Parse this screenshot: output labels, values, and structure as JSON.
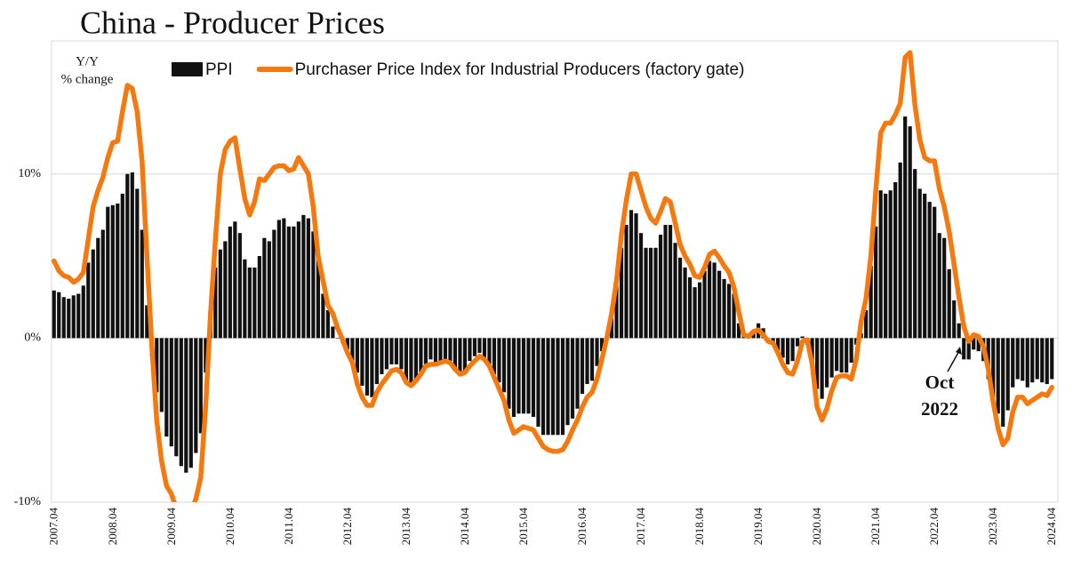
{
  "chart_data": {
    "type": "bar",
    "title": "China - Producer Prices",
    "ylabel": [
      "Y/Y",
      "% change"
    ],
    "annotation": [
      "Oct",
      "2022"
    ],
    "ylim": [
      -10,
      18
    ],
    "yticks": [
      {
        "value": -10,
        "label": "-10%"
      },
      {
        "value": 0,
        "label": "0%"
      },
      {
        "value": 10,
        "label": "10%"
      }
    ],
    "grid": true,
    "categories": [
      "2007.04",
      null,
      null,
      null,
      null,
      null,
      null,
      null,
      null,
      null,
      null,
      null,
      "2008.04",
      null,
      null,
      null,
      null,
      null,
      null,
      null,
      null,
      null,
      null,
      null,
      "2009.04",
      null,
      null,
      null,
      null,
      null,
      null,
      null,
      null,
      null,
      null,
      null,
      "2010.04",
      null,
      null,
      null,
      null,
      null,
      null,
      null,
      null,
      null,
      null,
      null,
      "2011.04",
      null,
      null,
      null,
      null,
      null,
      null,
      null,
      null,
      null,
      null,
      null,
      "2012.04",
      null,
      null,
      null,
      null,
      null,
      null,
      null,
      null,
      null,
      null,
      null,
      "2013.04",
      null,
      null,
      null,
      null,
      null,
      null,
      null,
      null,
      null,
      null,
      null,
      "2014.04",
      null,
      null,
      null,
      null,
      null,
      null,
      null,
      null,
      null,
      null,
      null,
      "2015.04",
      null,
      null,
      null,
      null,
      null,
      null,
      null,
      null,
      null,
      null,
      null,
      "2016.04",
      null,
      null,
      null,
      null,
      null,
      null,
      null,
      null,
      null,
      null,
      null,
      "2017.04",
      null,
      null,
      null,
      null,
      null,
      null,
      null,
      null,
      null,
      null,
      null,
      "2018.04",
      null,
      null,
      null,
      null,
      null,
      null,
      null,
      null,
      null,
      null,
      null,
      "2019.04",
      null,
      null,
      null,
      null,
      null,
      null,
      null,
      null,
      null,
      null,
      null,
      "2020.04",
      null,
      null,
      null,
      null,
      null,
      null,
      null,
      null,
      null,
      null,
      null,
      "2021.04",
      null,
      null,
      null,
      null,
      null,
      null,
      null,
      null,
      null,
      null,
      null,
      "2022.04",
      null,
      null,
      null,
      null,
      null,
      null,
      null,
      null,
      null,
      null,
      null,
      "2023.04",
      null,
      null,
      null,
      null,
      null,
      null,
      null,
      null,
      null,
      null,
      null,
      "2024.04"
    ],
    "series": [
      {
        "name": "PPI",
        "type": "bar",
        "color": "#111111",
        "values": [
          2.9,
          2.8,
          2.5,
          2.4,
          2.6,
          2.7,
          3.2,
          4.6,
          5.4,
          6.1,
          6.6,
          8.0,
          8.1,
          8.2,
          8.8,
          10.0,
          10.1,
          9.1,
          6.6,
          2.0,
          -1.1,
          -3.3,
          -4.5,
          -6.0,
          -6.6,
          -7.2,
          -7.8,
          -8.2,
          -7.9,
          -7.0,
          -5.8,
          -2.1,
          1.7,
          4.3,
          5.4,
          5.9,
          6.8,
          7.1,
          6.4,
          4.8,
          4.3,
          4.3,
          5.0,
          6.1,
          5.9,
          6.6,
          7.2,
          7.3,
          6.8,
          6.8,
          7.1,
          7.5,
          7.3,
          6.5,
          5.0,
          2.7,
          1.7,
          0.7,
          0.0,
          -0.3,
          -0.7,
          -1.4,
          -2.1,
          -2.9,
          -3.5,
          -3.6,
          -2.8,
          -2.2,
          -1.9,
          -1.6,
          -1.6,
          -1.9,
          -2.6,
          -2.9,
          -2.7,
          -2.3,
          -1.6,
          -1.3,
          -1.5,
          -1.4,
          -1.4,
          -1.6,
          -2.0,
          -2.3,
          -2.0,
          -1.4,
          -1.1,
          -0.9,
          -1.2,
          -1.8,
          -2.2,
          -2.7,
          -3.3,
          -4.3,
          -4.8,
          -4.6,
          -4.6,
          -4.6,
          -4.8,
          -5.4,
          -5.9,
          -5.9,
          -5.9,
          -5.9,
          -5.9,
          -5.3,
          -4.9,
          -4.3,
          -3.4,
          -2.8,
          -2.6,
          -1.7,
          -0.8,
          0.1,
          1.2,
          3.3,
          5.5,
          6.9,
          7.8,
          7.6,
          6.4,
          5.5,
          5.5,
          5.5,
          6.3,
          6.9,
          6.9,
          5.8,
          4.9,
          4.3,
          3.7,
          3.1,
          3.4,
          4.1,
          4.7,
          4.6,
          4.1,
          3.6,
          3.3,
          2.7,
          0.9,
          0.1,
          0.1,
          0.4,
          0.9,
          0.6,
          0.0,
          -0.3,
          -0.8,
          -1.2,
          -1.6,
          -1.4,
          -0.5,
          0.1,
          -0.4,
          -1.5,
          -3.1,
          -3.7,
          -3.0,
          -2.4,
          -2.0,
          -2.1,
          -2.1,
          -1.5,
          -0.4,
          0.3,
          1.7,
          4.4,
          6.8,
          9.0,
          8.8,
          9.0,
          9.5,
          10.7,
          13.5,
          12.9,
          10.3,
          9.1,
          8.8,
          8.3,
          8.0,
          6.4,
          6.1,
          4.2,
          2.3,
          0.9,
          -1.3,
          -1.3,
          -0.7,
          -0.8,
          -1.4,
          -2.5,
          -3.6,
          -4.6,
          -5.4,
          -4.4,
          -3.0,
          -2.5,
          -2.6,
          -3.0,
          -2.7,
          -2.5,
          -2.7,
          -2.8,
          -2.5
        ]
      },
      {
        "name": "Purchaser Price Index for Industrial Producers (factory gate)",
        "type": "line",
        "color": "#f47a10",
        "values": [
          4.7,
          4.1,
          3.8,
          3.7,
          3.4,
          3.6,
          4.0,
          6.0,
          8.0,
          9.0,
          9.8,
          11.0,
          11.9,
          12.0,
          13.8,
          15.4,
          15.2,
          13.8,
          10.8,
          5.0,
          -0.5,
          -5.0,
          -7.5,
          -9.0,
          -9.5,
          -10.4,
          -11.0,
          -11.0,
          -10.6,
          -9.8,
          -8.5,
          -4.2,
          1.5,
          6.0,
          10.0,
          11.5,
          12.0,
          12.2,
          10.3,
          8.5,
          7.5,
          8.3,
          9.7,
          9.6,
          10.0,
          10.4,
          10.5,
          10.5,
          10.2,
          10.3,
          11.0,
          10.5,
          10.0,
          8.0,
          5.0,
          3.5,
          2.0,
          1.5,
          0.6,
          -0.1,
          -0.9,
          -1.5,
          -2.8,
          -3.6,
          -4.1,
          -4.1,
          -3.3,
          -2.8,
          -2.4,
          -2.0,
          -1.9,
          -2.1,
          -2.7,
          -2.9,
          -2.6,
          -2.2,
          -1.7,
          -1.6,
          -1.6,
          -1.5,
          -1.4,
          -1.5,
          -1.9,
          -2.2,
          -2.1,
          -1.7,
          -1.4,
          -1.1,
          -1.3,
          -1.7,
          -2.4,
          -3.1,
          -3.8,
          -5.0,
          -5.8,
          -5.6,
          -5.4,
          -5.5,
          -5.6,
          -6.1,
          -6.6,
          -6.8,
          -6.9,
          -6.9,
          -6.8,
          -6.3,
          -5.6,
          -5.0,
          -4.2,
          -3.6,
          -3.3,
          -2.5,
          -1.3,
          0.0,
          1.5,
          3.5,
          6.3,
          8.4,
          10.0,
          10.0,
          9.0,
          8.0,
          7.3,
          7.0,
          7.7,
          8.5,
          8.3,
          7.0,
          5.7,
          5.0,
          4.5,
          3.8,
          3.7,
          4.3,
          5.1,
          5.3,
          4.9,
          4.4,
          4.0,
          3.1,
          1.6,
          0.2,
          0.1,
          0.4,
          0.5,
          0.2,
          -0.2,
          -0.3,
          -0.9,
          -1.6,
          -2.1,
          -2.2,
          -1.4,
          -0.2,
          -0.1,
          -1.6,
          -4.2,
          -5.0,
          -4.3,
          -3.2,
          -2.4,
          -2.3,
          -2.3,
          -2.5,
          -1.3,
          1.0,
          2.4,
          5.0,
          9.0,
          12.5,
          13.1,
          13.1,
          13.6,
          14.3,
          17.1,
          17.4,
          14.2,
          12.1,
          11.0,
          10.8,
          10.8,
          9.1,
          8.0,
          6.5,
          4.5,
          2.5,
          0.7,
          -0.2,
          0.2,
          0.1,
          -0.5,
          -1.9,
          -3.9,
          -5.5,
          -6.5,
          -6.1,
          -4.5,
          -3.6,
          -3.6,
          -4.0,
          -3.8,
          -3.6,
          -3.4,
          -3.5,
          -3.0
        ]
      }
    ]
  }
}
